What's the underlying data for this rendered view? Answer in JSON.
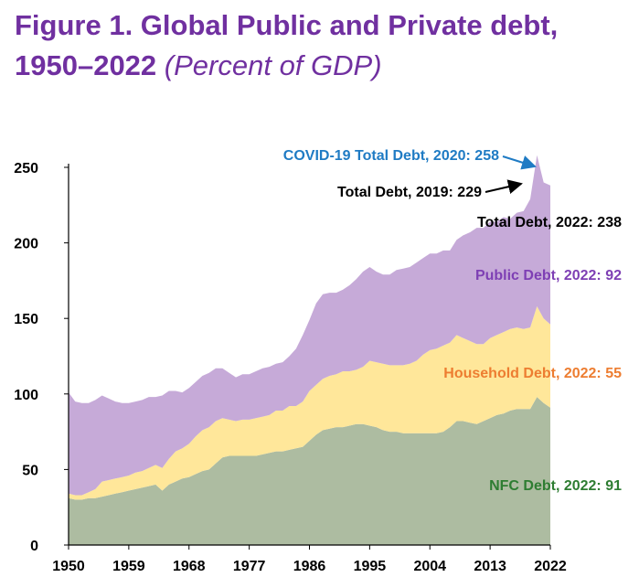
{
  "title": "Figure 1. Global Public and Private debt,",
  "title_line2": "1950–2022",
  "subtitle": "(Percent of GDP)",
  "colors": {
    "title": "#7030a0",
    "nfc": "#adbca1",
    "household": "#ffe79a",
    "public": "#c6aad8",
    "annotation_blue": "#1f7bc4",
    "annotation_black": "#000000",
    "annotation_purple": "#7e3fb4",
    "annotation_orange": "#ed7d31",
    "annotation_green": "#2e7d32"
  },
  "chart_data": {
    "type": "area",
    "stacked": true,
    "title": "Figure 1. Global Public and Private debt, 1950–2022",
    "subtitle": "(Percent of GDP)",
    "xlabel": "",
    "ylabel": "",
    "xlim": [
      1950,
      2022
    ],
    "ylim": [
      0,
      250
    ],
    "grid": false,
    "x_ticks": [
      "1950",
      "1959",
      "1968",
      "1977",
      "1986",
      "1995",
      "2004",
      "2013",
      "2022"
    ],
    "y_ticks": [
      "0",
      "50",
      "100",
      "150",
      "200",
      "250"
    ],
    "x": [
      1950,
      1951,
      1952,
      1953,
      1954,
      1955,
      1956,
      1957,
      1958,
      1959,
      1960,
      1961,
      1962,
      1963,
      1964,
      1965,
      1966,
      1967,
      1968,
      1969,
      1970,
      1971,
      1972,
      1973,
      1974,
      1975,
      1976,
      1977,
      1978,
      1979,
      1980,
      1981,
      1982,
      1983,
      1984,
      1985,
      1986,
      1987,
      1988,
      1989,
      1990,
      1991,
      1992,
      1993,
      1994,
      1995,
      1996,
      1997,
      1998,
      1999,
      2000,
      2001,
      2002,
      2003,
      2004,
      2005,
      2006,
      2007,
      2008,
      2009,
      2010,
      2011,
      2012,
      2013,
      2014,
      2015,
      2016,
      2017,
      2018,
      2019,
      2020,
      2021,
      2022
    ],
    "series": [
      {
        "name": "NFC Debt",
        "values": [
          31,
          30,
          30,
          31,
          31,
          32,
          33,
          34,
          35,
          36,
          37,
          38,
          39,
          40,
          36,
          40,
          42,
          44,
          45,
          47,
          49,
          50,
          54,
          58,
          59,
          59,
          59,
          59,
          59,
          60,
          61,
          62,
          62,
          63,
          64,
          65,
          69,
          73,
          76,
          77,
          78,
          78,
          79,
          80,
          80,
          79,
          78,
          76,
          75,
          75,
          74,
          74,
          74,
          74,
          74,
          74,
          75,
          78,
          82,
          82,
          81,
          80,
          82,
          84,
          86,
          87,
          89,
          90,
          90,
          90,
          98,
          94,
          91
        ]
      },
      {
        "name": "Household Debt",
        "values": [
          3,
          3,
          3,
          4,
          6,
          10,
          10,
          10,
          10,
          10,
          11,
          11,
          12,
          13,
          15,
          17,
          20,
          20,
          22,
          25,
          27,
          28,
          28,
          26,
          24,
          23,
          24,
          24,
          25,
          25,
          25,
          27,
          27,
          29,
          28,
          30,
          33,
          33,
          34,
          35,
          35,
          37,
          36,
          36,
          38,
          43,
          43,
          44,
          44,
          44,
          45,
          46,
          48,
          52,
          55,
          56,
          57,
          56,
          57,
          55,
          54,
          53,
          51,
          53,
          53,
          54,
          54,
          54,
          53,
          54,
          60,
          56,
          55
        ]
      },
      {
        "name": "Public Debt",
        "values": [
          67,
          62,
          61,
          59,
          59,
          57,
          54,
          51,
          49,
          48,
          47,
          47,
          47,
          45,
          48,
          45,
          40,
          37,
          37,
          36,
          36,
          36,
          35,
          33,
          31,
          29,
          30,
          30,
          31,
          32,
          32,
          31,
          32,
          33,
          38,
          44,
          47,
          54,
          56,
          55,
          54,
          54,
          57,
          60,
          63,
          62,
          60,
          59,
          60,
          63,
          64,
          64,
          65,
          64,
          64,
          63,
          63,
          61,
          63,
          68,
          72,
          77,
          77,
          77,
          75,
          76,
          73,
          76,
          78,
          85,
          100,
          90,
          92
        ]
      }
    ],
    "annotations": [
      {
        "text": "COVID-19 Total Debt, 2020: 258",
        "x": 2020,
        "y": 258
      },
      {
        "text": "Total Debt, 2019: 229",
        "x": 2019,
        "y": 229
      },
      {
        "text": "Total Debt, 2022: 238",
        "x": 2022,
        "y": 238
      },
      {
        "text": "Public Debt, 2022: 92"
      },
      {
        "text": "Household Debt, 2022: 55"
      },
      {
        "text": "NFC Debt, 2022: 91"
      }
    ]
  }
}
